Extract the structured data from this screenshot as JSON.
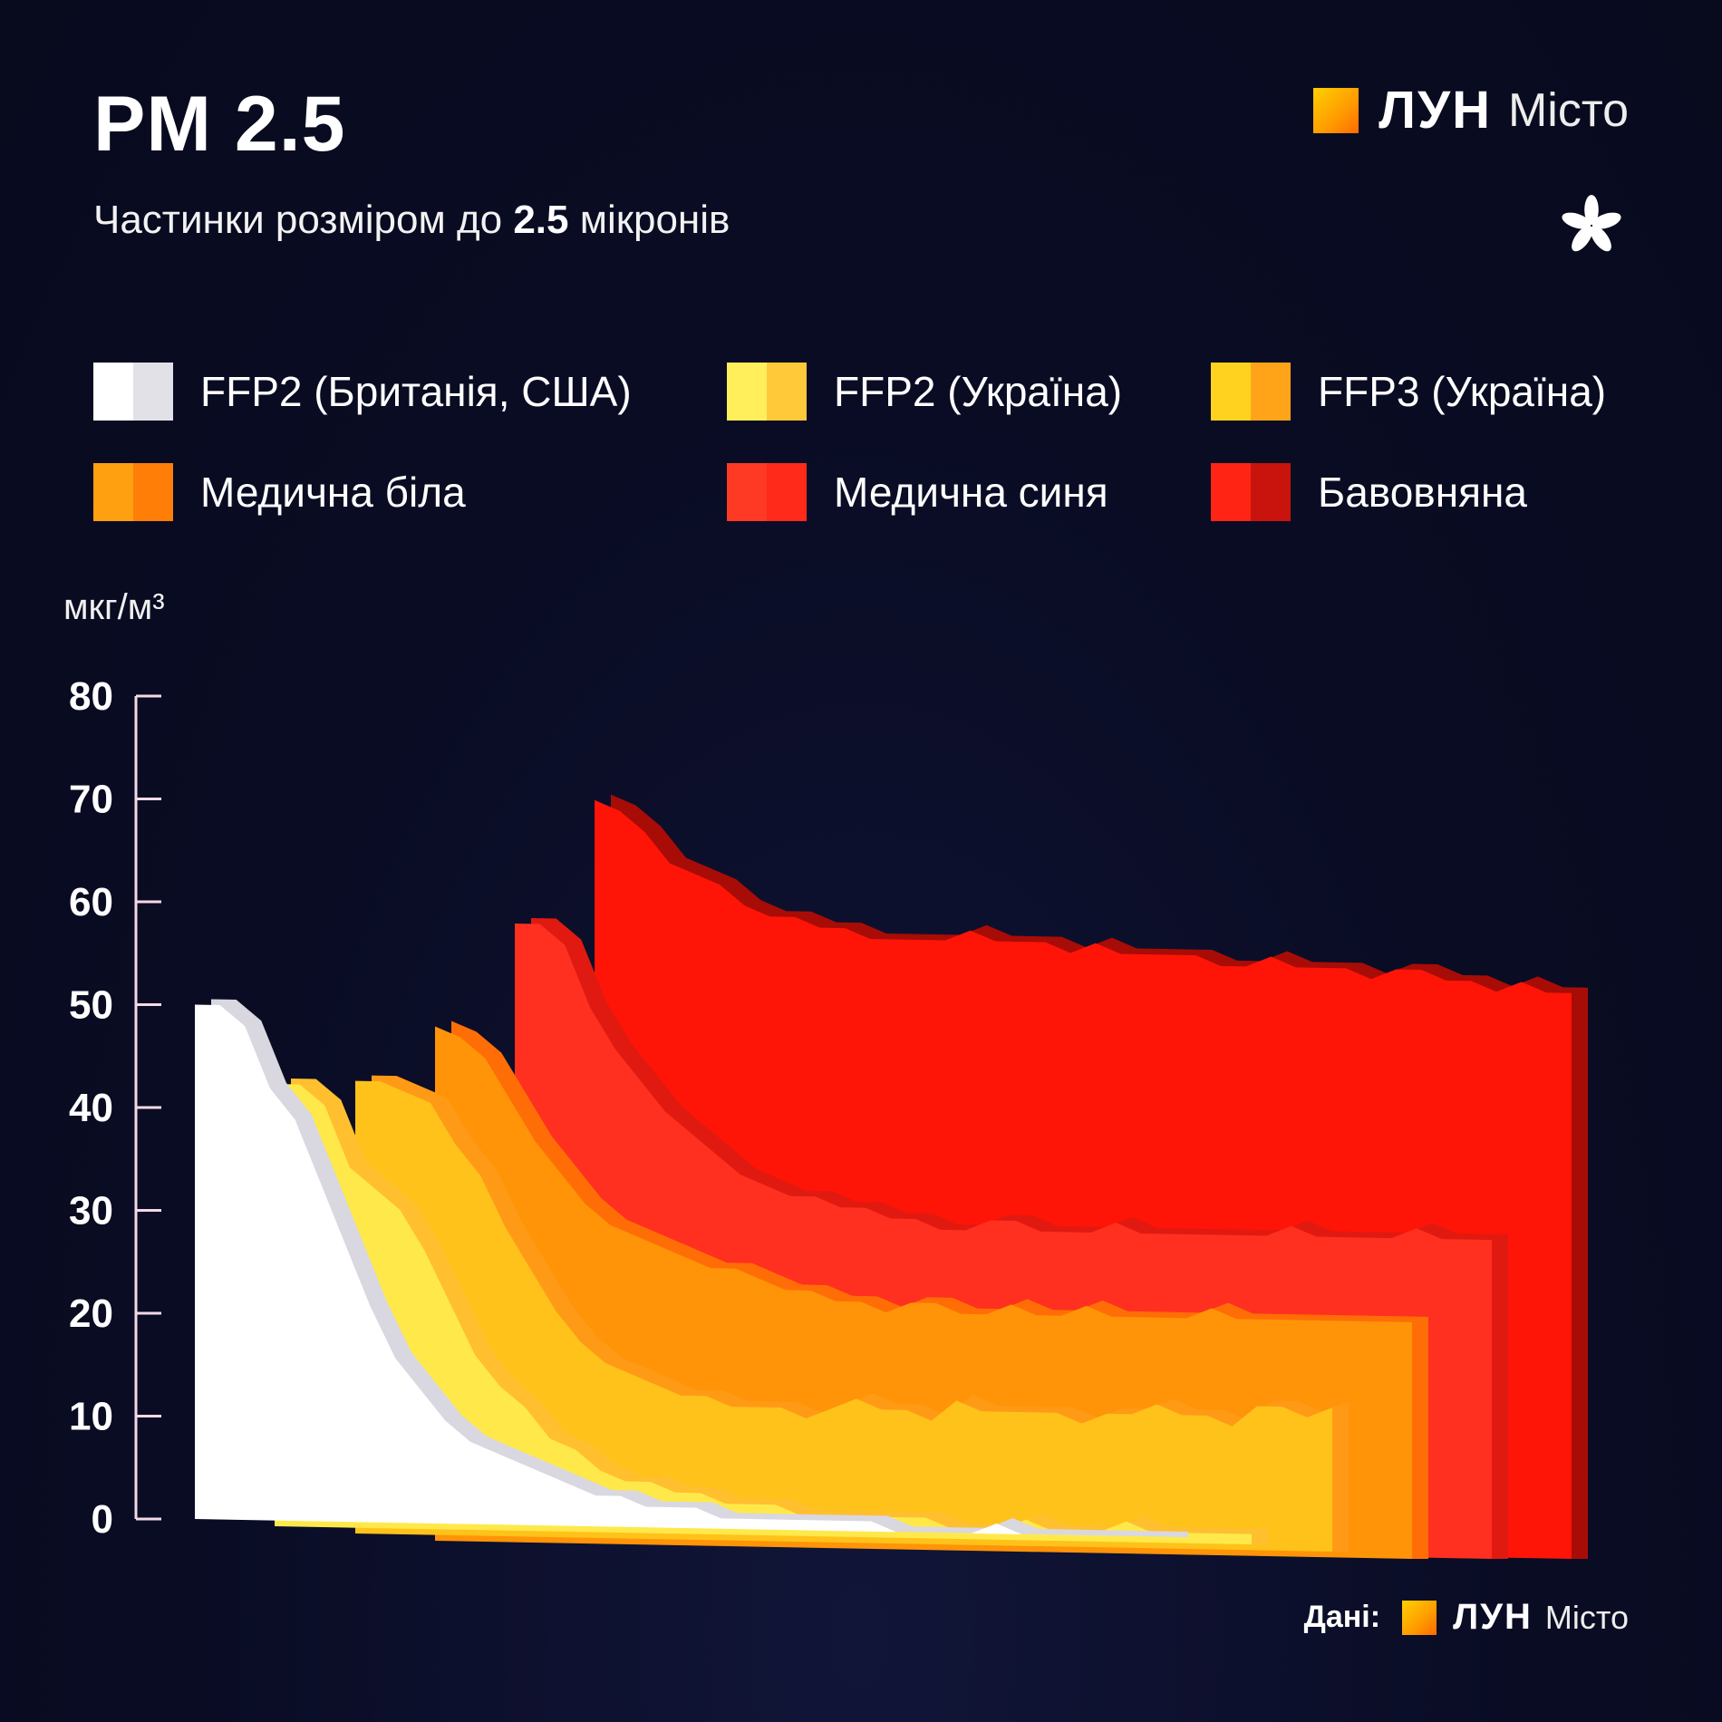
{
  "header": {
    "title": "PM 2.5",
    "subtitle_pre": "Частинки розміром до ",
    "subtitle_bold": "2.5",
    "subtitle_post": " мікронів"
  },
  "brand": {
    "logo_word": "ЛУН",
    "logo_suffix": "Місто",
    "logo_icon": "brand-square-icon",
    "emblem_icon": "chestnut-leaf-icon"
  },
  "source": {
    "label": "Дані:",
    "logo_word": "ЛУН",
    "logo_suffix": "Місто"
  },
  "legend": [
    {
      "label": "FFP2 (Британія, США)",
      "color": "#ffffff",
      "shade": "#e3e1e8"
    },
    {
      "label": "FFP2 (Україна)",
      "color": "#ffef5a",
      "shade": "#ffc93a"
    },
    {
      "label": "FFP3 (Україна)",
      "color": "#ffd21f",
      "shade": "#ffa419"
    },
    {
      "label": "Медична біла",
      "color": "#ffa010",
      "shade": "#ff7e08"
    },
    {
      "label": "Медична синя",
      "color": "#ff3a24",
      "shade": "#ff2a1a"
    },
    {
      "label": "Бавовняна",
      "color": "#ff2414",
      "shade": "#c8140c"
    }
  ],
  "chart_data": {
    "type": "area",
    "title": "PM 2.5",
    "ylabel": "мкг/м³",
    "ylim": [
      0,
      80
    ],
    "yticks": [
      0,
      10,
      20,
      30,
      40,
      50,
      60,
      70,
      80
    ],
    "series": [
      {
        "name": "FFP2 (Британія, США)",
        "color": "#ffffff",
        "shade": "#d9d7e0",
        "values": [
          50,
          50,
          48,
          42,
          39,
          33,
          27,
          21,
          16,
          13,
          10,
          8,
          7,
          6,
          5,
          4,
          3,
          3,
          2,
          2,
          2,
          1,
          1,
          1,
          1,
          1,
          1,
          1,
          0,
          0,
          0,
          0,
          1,
          0,
          0,
          0,
          0,
          0,
          0,
          0
        ]
      },
      {
        "name": "FFP2 (Україна)",
        "color": "#ffe94a",
        "shade": "#ffbf2e",
        "values": [
          43,
          43,
          41,
          35,
          33,
          31,
          27,
          22,
          17,
          14,
          12,
          9,
          8,
          6,
          5,
          5,
          4,
          4,
          3,
          3,
          3,
          2,
          2,
          2,
          2,
          2,
          2,
          1,
          1,
          1,
          2,
          1,
          1,
          1,
          2,
          1,
          1,
          1,
          1,
          1
        ]
      },
      {
        "name": "FFP3 (Україна)",
        "color": "#ffc21a",
        "shade": "#ff9a16",
        "values": [
          44,
          44,
          43,
          42,
          38,
          35,
          30,
          26,
          22,
          19,
          17,
          16,
          15,
          14,
          14,
          13,
          13,
          13,
          12,
          13,
          14,
          13,
          13,
          12,
          14,
          13,
          13,
          13,
          13,
          12,
          13,
          13,
          14,
          13,
          13,
          12,
          14,
          14,
          13,
          14
        ]
      },
      {
        "name": "Медична біла",
        "color": "#ff9408",
        "shade": "#ff6e06",
        "values": [
          50,
          49,
          47,
          43,
          39,
          36,
          33,
          31,
          30,
          29,
          28,
          27,
          27,
          26,
          25,
          25,
          24,
          24,
          23,
          24,
          24,
          23,
          23,
          24,
          23,
          23,
          24,
          23,
          23,
          23,
          23,
          24,
          23,
          23,
          23,
          23,
          23,
          23,
          23,
          23
        ]
      },
      {
        "name": "Медична синя",
        "color": "#ff3020",
        "shade": "#e01a10",
        "values": [
          60,
          60,
          58,
          52,
          48,
          45,
          42,
          40,
          38,
          36,
          35,
          34,
          34,
          33,
          33,
          32,
          32,
          31,
          31,
          32,
          32,
          31,
          31,
          31,
          32,
          31,
          31,
          31,
          31,
          31,
          31,
          32,
          31,
          31,
          31,
          31,
          32,
          31,
          31,
          31
        ]
      },
      {
        "name": "Бавовняна",
        "color": "#ff1408",
        "shade": "#a80c06",
        "values": [
          72,
          71,
          69,
          66,
          65,
          64,
          62,
          61,
          61,
          60,
          60,
          59,
          59,
          59,
          59,
          60,
          59,
          59,
          59,
          58,
          59,
          58,
          58,
          58,
          58,
          57,
          57,
          58,
          57,
          57,
          57,
          56,
          57,
          57,
          56,
          56,
          55,
          56,
          55,
          55
        ]
      }
    ]
  }
}
